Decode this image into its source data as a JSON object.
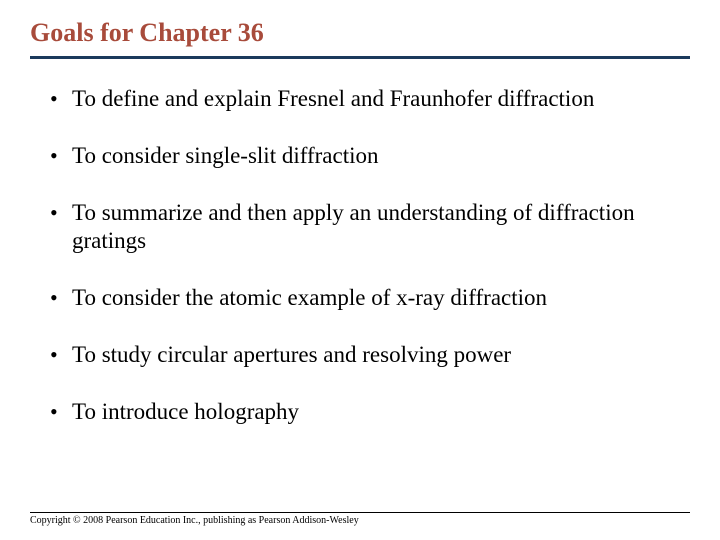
{
  "title": "Goals for Chapter 36",
  "title_color": "#a84b3b",
  "title_fontsize": 26,
  "underline_color": "#1b3a5c",
  "body_fontsize": 23,
  "background_color": "#ffffff",
  "goals": [
    "To define and explain Fresnel and Fraunhofer diffraction",
    "To consider single-slit diffraction",
    "To summarize and then apply an understanding of diffraction gratings",
    "To consider the atomic example of x-ray diffraction",
    "To study circular apertures and resolving power",
    "To introduce holography"
  ],
  "footer": "Copyright © 2008 Pearson Education Inc., publishing as Pearson Addison-Wesley"
}
